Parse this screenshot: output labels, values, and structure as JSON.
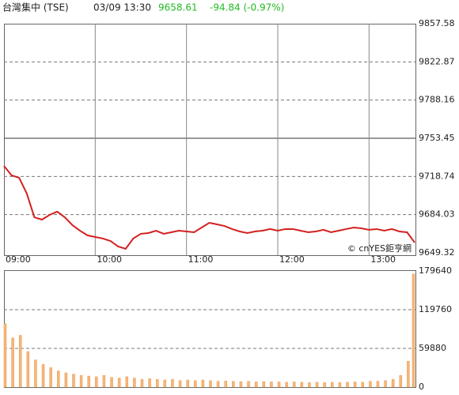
{
  "chart_data": [
    {
      "type": "line",
      "title": "台灣集中 (TSE)",
      "subtitle": "03/09 13:30",
      "quote": {
        "price": 9658.61,
        "change": "-94.84 (-0.97%)",
        "color": "#22bb22"
      },
      "watermark": "© cnYES鉅亨網",
      "x": [
        "09:00",
        "09:05",
        "09:10",
        "09:15",
        "09:20",
        "09:25",
        "09:30",
        "09:35",
        "09:40",
        "09:45",
        "09:50",
        "09:55",
        "10:00",
        "10:05",
        "10:10",
        "10:15",
        "10:20",
        "10:25",
        "10:30",
        "10:35",
        "10:40",
        "10:45",
        "10:50",
        "10:55",
        "11:00",
        "11:05",
        "11:10",
        "11:15",
        "11:20",
        "11:25",
        "11:30",
        "11:35",
        "11:40",
        "11:45",
        "11:50",
        "11:55",
        "12:00",
        "12:05",
        "12:10",
        "12:15",
        "12:20",
        "12:25",
        "12:30",
        "12:35",
        "12:40",
        "12:45",
        "12:50",
        "12:55",
        "13:00",
        "13:05",
        "13:10",
        "13:15",
        "13:20",
        "13:25",
        "13:30"
      ],
      "xlim": [
        "09:00",
        "13:30"
      ],
      "xticks": [
        "09:00",
        "10:00",
        "11:00",
        "12:00",
        "13:00"
      ],
      "series": [
        {
          "color": "#d42020",
          "values": [
            9728.3,
            9719.7,
            9717.5,
            9703.2,
            9681.6,
            9679.5,
            9683.8,
            9686.7,
            9681.6,
            9674.5,
            9669.4,
            9665.1,
            9663.7,
            9662.3,
            9660.1,
            9655.1,
            9652.9,
            9662.3,
            9666.6,
            9667.3,
            9669.4,
            9666.6,
            9668.0,
            9669.4,
            9668.7,
            9668.0,
            9672.3,
            9676.6,
            9675.2,
            9673.7,
            9670.9,
            9668.7,
            9667.3,
            9668.7,
            9669.4,
            9670.9,
            9669.4,
            9670.9,
            9670.9,
            9669.4,
            9668.0,
            9668.7,
            9670.2,
            9668.0,
            9669.4,
            9670.9,
            9672.3,
            9671.6,
            9670.2,
            9670.9,
            9669.4,
            9670.9,
            9668.7,
            9668.0,
            9658.6
          ]
        }
      ],
      "ylim": [
        9649.32,
        9857.58
      ],
      "yticks": [
        9649.32,
        9684.03,
        9718.74,
        9753.45,
        9788.16,
        9822.87,
        9857.58
      ],
      "reference_line": 9753.45,
      "grid": true
    },
    {
      "type": "bar",
      "x": [
        "09:00",
        "09:05",
        "09:10",
        "09:15",
        "09:20",
        "09:25",
        "09:30",
        "09:35",
        "09:40",
        "09:45",
        "09:50",
        "09:55",
        "10:00",
        "10:05",
        "10:10",
        "10:15",
        "10:20",
        "10:25",
        "10:30",
        "10:35",
        "10:40",
        "10:45",
        "10:50",
        "10:55",
        "11:00",
        "11:05",
        "11:10",
        "11:15",
        "11:20",
        "11:25",
        "11:30",
        "11:35",
        "11:40",
        "11:45",
        "11:50",
        "11:55",
        "12:00",
        "12:05",
        "12:10",
        "12:15",
        "12:20",
        "12:25",
        "12:30",
        "12:35",
        "12:40",
        "12:45",
        "12:50",
        "12:55",
        "13:00",
        "13:05",
        "13:10",
        "13:15",
        "13:20",
        "13:25",
        "13:30"
      ],
      "xlim": [
        "09:00",
        "13:30"
      ],
      "color": "#f5b77a",
      "values": [
        98000,
        76000,
        80000,
        55000,
        42000,
        35000,
        30000,
        25000,
        22000,
        20000,
        18000,
        17000,
        16000,
        18000,
        15000,
        14000,
        16000,
        14000,
        12000,
        13000,
        12000,
        11000,
        12000,
        10000,
        11000,
        10000,
        11000,
        10000,
        9000,
        9500,
        9000,
        8500,
        9000,
        8000,
        8500,
        8000,
        8000,
        7500,
        8000,
        7500,
        7000,
        7500,
        7000,
        7500,
        7000,
        7500,
        8000,
        7500,
        9000,
        9000,
        10000,
        12000,
        18000,
        40000,
        175000
      ],
      "ylim": [
        0,
        179640
      ],
      "yticks": [
        0,
        59880,
        119760,
        179640
      ],
      "grid": true
    }
  ]
}
